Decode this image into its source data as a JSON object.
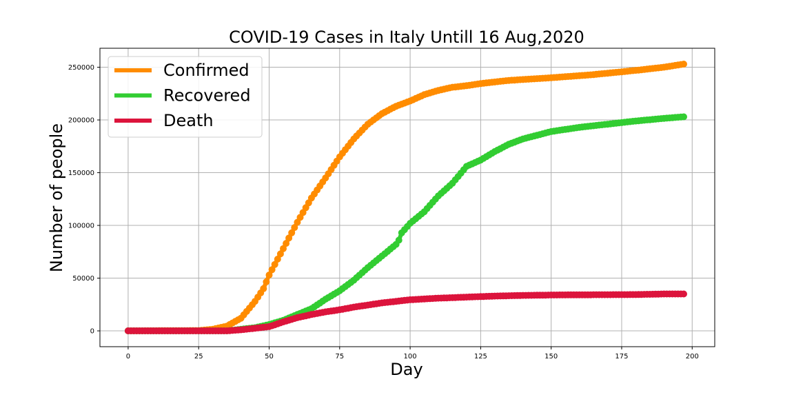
{
  "chart_data": {
    "type": "line",
    "title": "COVID-19 Cases in Italy Untill 16 Aug,2020",
    "xlabel": "Day",
    "ylabel": "Number of people",
    "xlim": [
      -10,
      208
    ],
    "ylim": [
      -15000,
      268000
    ],
    "x_ticks": [
      0,
      25,
      50,
      75,
      100,
      125,
      150,
      175,
      200
    ],
    "y_ticks": [
      0,
      50000,
      100000,
      150000,
      200000,
      250000
    ],
    "x_tick_labels": [
      "0",
      "25",
      "50",
      "75",
      "100",
      "125",
      "150",
      "175",
      "200"
    ],
    "y_tick_labels": [
      "0",
      "50000",
      "100000",
      "150000",
      "200000",
      "250000"
    ],
    "grid": true,
    "legend_position": "top-left",
    "series": [
      {
        "name": "Confirmed",
        "color": "#ff8c00",
        "points": [
          [
            0,
            0
          ],
          [
            25,
            300
          ],
          [
            30,
            1500
          ],
          [
            35,
            4500
          ],
          [
            40,
            12000
          ],
          [
            45,
            28000
          ],
          [
            48,
            40000
          ],
          [
            50,
            53000
          ],
          [
            55,
            78000
          ],
          [
            60,
            103000
          ],
          [
            65,
            126000
          ],
          [
            70,
            145000
          ],
          [
            75,
            165000
          ],
          [
            80,
            182000
          ],
          [
            85,
            196000
          ],
          [
            90,
            206000
          ],
          [
            95,
            213000
          ],
          [
            100,
            218000
          ],
          [
            105,
            224000
          ],
          [
            110,
            228000
          ],
          [
            115,
            231000
          ],
          [
            120,
            232500
          ],
          [
            125,
            234500
          ],
          [
            135,
            237500
          ],
          [
            150,
            240000
          ],
          [
            165,
            243000
          ],
          [
            180,
            247000
          ],
          [
            190,
            250000
          ],
          [
            197,
            253000
          ]
        ]
      },
      {
        "name": "Recovered",
        "color": "#32cd32",
        "points": [
          [
            0,
            0
          ],
          [
            35,
            0
          ],
          [
            45,
            3000
          ],
          [
            50,
            6000
          ],
          [
            55,
            10000
          ],
          [
            60,
            15500
          ],
          [
            65,
            21000
          ],
          [
            70,
            30000
          ],
          [
            75,
            38000
          ],
          [
            80,
            48000
          ],
          [
            85,
            60000
          ],
          [
            90,
            71000
          ],
          [
            95,
            82000
          ],
          [
            96,
            86000
          ],
          [
            97,
            93000
          ],
          [
            100,
            102000
          ],
          [
            105,
            113000
          ],
          [
            110,
            128000
          ],
          [
            115,
            140000
          ],
          [
            120,
            156000
          ],
          [
            125,
            162000
          ],
          [
            130,
            170000
          ],
          [
            135,
            177000
          ],
          [
            140,
            182000
          ],
          [
            150,
            189000
          ],
          [
            160,
            193000
          ],
          [
            170,
            196000
          ],
          [
            180,
            199000
          ],
          [
            190,
            201500
          ],
          [
            197,
            203000
          ]
        ]
      },
      {
        "name": "Death",
        "color": "#dc143c",
        "points": [
          [
            0,
            0
          ],
          [
            35,
            0
          ],
          [
            40,
            1000
          ],
          [
            45,
            2500
          ],
          [
            50,
            4000
          ],
          [
            55,
            8500
          ],
          [
            60,
            12500
          ],
          [
            65,
            15500
          ],
          [
            70,
            18000
          ],
          [
            75,
            20000
          ],
          [
            80,
            22500
          ],
          [
            85,
            24500
          ],
          [
            90,
            26500
          ],
          [
            95,
            28000
          ],
          [
            100,
            29500
          ],
          [
            110,
            31000
          ],
          [
            120,
            32000
          ],
          [
            130,
            33000
          ],
          [
            140,
            33600
          ],
          [
            150,
            34000
          ],
          [
            160,
            34200
          ],
          [
            170,
            34300
          ],
          [
            180,
            34400
          ],
          [
            190,
            35000
          ],
          [
            197,
            35000
          ]
        ]
      }
    ]
  }
}
